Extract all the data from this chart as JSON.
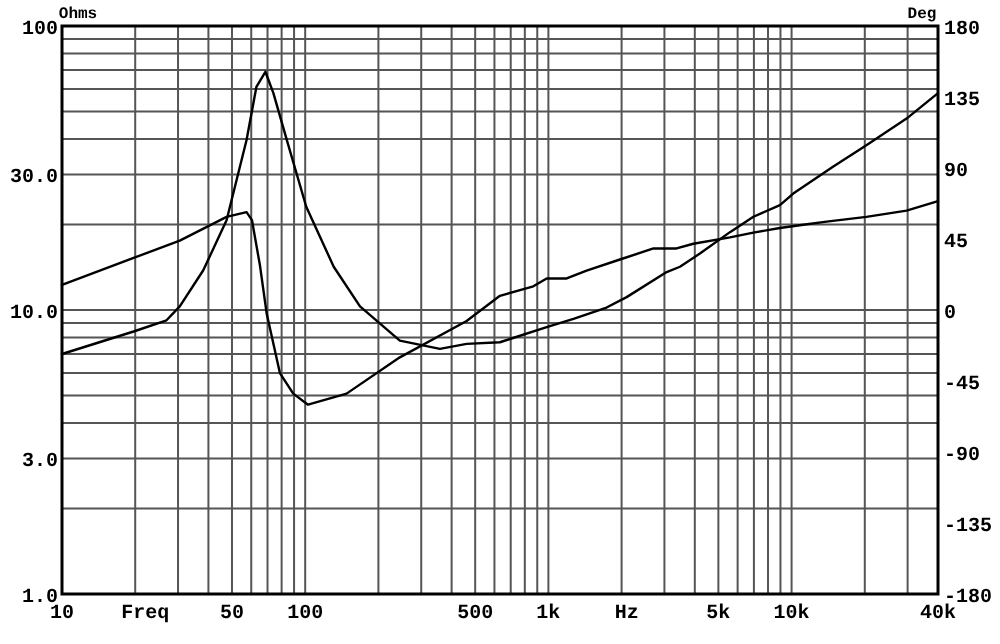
{
  "chart_data": {
    "type": "line",
    "xlabel": "Freq",
    "ylabel": "Ohms",
    "y2label": "Deg",
    "annotations": [
      "Hz"
    ],
    "log": "xy",
    "grid": true,
    "marker": "none",
    "line_style": "solid",
    "xlim": [
      10,
      40000
    ],
    "xticks": [
      10,
      50,
      100,
      500,
      {
        "value": 1000,
        "label": "1k"
      },
      {
        "value": 5000,
        "label": "5k"
      },
      {
        "value": 10000,
        "label": "10k"
      },
      {
        "value": 40000,
        "label": "40k"
      }
    ],
    "ylim": [
      1,
      100
    ],
    "yticks": [
      {
        "value": 1,
        "label": "1.0"
      },
      {
        "value": 3,
        "label": "3.0"
      },
      {
        "value": 10,
        "label": "10.0"
      },
      {
        "value": 30,
        "label": "30.0"
      },
      100
    ],
    "y2lim": [
      -180,
      180
    ],
    "y2ticks": [
      -180,
      -135,
      -90,
      -45,
      0,
      45,
      90,
      135,
      180
    ],
    "series": [
      {
        "color": "#000000",
        "x": [
          10,
          19.7,
          26.9,
          30.5,
          38.1,
          47.5,
          57.4,
          63,
          68.6,
          74,
          84,
          101,
          131,
          168,
          245,
          358,
          461,
          632,
          984,
          1268,
          1735,
          2098,
          3064,
          3475,
          4198,
          5580,
          6966,
          8955,
          10160,
          14850,
          20300,
          29700,
          40000
        ],
        "values": [
          7.0,
          8.4,
          9.2,
          10.3,
          13.8,
          20.7,
          39.7,
          61,
          69,
          58,
          39.7,
          23.1,
          14.2,
          10.3,
          7.8,
          7.3,
          7.6,
          7.7,
          8.7,
          9.3,
          10.2,
          11.1,
          13.6,
          14.2,
          15.8,
          18.8,
          21.3,
          23.4,
          25.7,
          32,
          38,
          47.2,
          58
        ]
      },
      {
        "color": "#000000",
        "axis": "y2",
        "x": [
          10,
          19.7,
          30.5,
          47.5,
          57.4,
          60.4,
          65.2,
          69.4,
          78.7,
          89.3,
          102.7,
          148,
          245,
          461,
          632,
          867,
          984,
          1189,
          1436,
          1968,
          2704,
          3366,
          3945,
          5580,
          6966,
          8955,
          11170,
          13930,
          20300,
          29700,
          40000
        ],
        "values": [
          16,
          33,
          44,
          59,
          62,
          57,
          28,
          -2,
          -40,
          -53,
          -60,
          -53,
          -30,
          -7,
          9,
          15,
          20,
          20,
          25,
          32,
          39,
          39,
          42,
          46,
          49,
          52,
          54,
          56,
          59,
          63,
          69
        ]
      }
    ]
  }
}
